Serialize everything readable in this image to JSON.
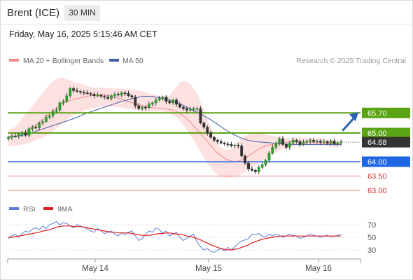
{
  "header": {
    "instrument": "Brent (ICE)",
    "timeframe": "30 MIN"
  },
  "timestamp": "Friday, May 16, 2025 5:15:46 AM CET",
  "legend": [
    {
      "label": "MA 20 + Bollinger Bands",
      "color": "#f08a8a"
    },
    {
      "label": "MA 50",
      "color": "#3c5fa8"
    }
  ],
  "credit": "Research © 2025 Trading Central",
  "rsi_legend": [
    {
      "label": "RSI",
      "color": "#5b7fd6"
    },
    {
      "label": "9MA",
      "color": "#e01e1e"
    }
  ],
  "chart_data": {
    "type": "candlestick",
    "ylim": [
      62.85,
      66.5
    ],
    "x_ticks": [
      "May 14",
      "May 15",
      "May 16"
    ],
    "last_price": 64.68,
    "levels": [
      {
        "value": 65.7,
        "label": "65.70",
        "kind": "resistance"
      },
      {
        "value": 65.0,
        "label": "65.00",
        "kind": "resistance"
      },
      {
        "value": 64.0,
        "label": "64.00",
        "kind": "pivot"
      },
      {
        "value": 63.5,
        "label": "63.50",
        "kind": "support"
      },
      {
        "value": 63.0,
        "label": "63.00",
        "kind": "support"
      }
    ],
    "closes": [
      64.85,
      64.9,
      64.88,
      64.95,
      65.0,
      64.92,
      65.15,
      65.2,
      65.18,
      65.35,
      65.4,
      65.55,
      65.6,
      65.75,
      65.8,
      66.05,
      66.1,
      66.3,
      66.55,
      66.48,
      66.45,
      66.42,
      66.4,
      66.38,
      66.35,
      66.3,
      66.32,
      66.28,
      66.25,
      66.2,
      66.3,
      66.35,
      66.32,
      66.4,
      66.38,
      66.3,
      66.25,
      65.95,
      65.85,
      65.9,
      65.88,
      66.0,
      66.05,
      66.15,
      66.2,
      66.25,
      66.1,
      66.05,
      66.15,
      66.0,
      65.9,
      65.85,
      65.8,
      65.82,
      65.85,
      65.85,
      65.35,
      65.2,
      65.0,
      64.85,
      64.75,
      64.7,
      64.65,
      64.62,
      64.6,
      64.55,
      64.58,
      64.55,
      64.2,
      63.95,
      63.75,
      63.7,
      63.65,
      63.8,
      63.9,
      64.05,
      64.3,
      64.5,
      64.65,
      64.8,
      64.6,
      64.5,
      64.65,
      64.75,
      64.7,
      64.6,
      64.68,
      64.72,
      64.75,
      64.7,
      64.72,
      64.68,
      64.7,
      64.65,
      64.72,
      64.62,
      64.66,
      64.7
    ],
    "ma20": [
      64.85,
      64.86,
      64.88,
      64.92,
      64.98,
      65.05,
      65.12,
      65.2,
      65.28,
      65.38,
      65.48,
      65.58,
      65.68,
      65.78,
      65.88,
      65.98,
      66.05,
      66.1,
      66.14,
      66.17,
      66.2,
      66.22,
      66.25,
      66.28,
      66.3,
      66.32,
      66.33,
      66.33,
      66.32,
      66.3,
      66.28,
      66.25,
      66.22,
      66.18,
      66.14,
      66.1,
      66.06,
      66.02,
      65.98,
      65.95,
      65.92,
      65.9,
      65.88,
      65.87,
      65.86,
      65.85,
      65.84,
      65.82,
      65.8,
      65.75,
      65.68,
      65.6,
      65.5,
      65.38,
      65.25,
      65.12,
      64.98,
      64.84,
      64.7,
      64.56,
      64.42,
      64.3,
      64.2,
      64.12,
      64.06,
      64.02,
      64.0,
      64.02,
      64.06,
      64.12,
      64.2,
      64.28,
      64.36,
      64.44,
      64.5,
      64.55,
      64.58,
      64.6,
      64.62,
      64.64,
      64.66,
      64.68,
      64.7,
      64.7,
      64.7,
      64.69,
      64.68,
      64.68,
      64.68,
      64.67,
      64.66,
      64.65,
      64.65,
      64.64,
      64.64,
      64.63,
      64.62,
      64.62
    ],
    "bb_upper": [
      65.1,
      65.15,
      65.2,
      65.35,
      65.5,
      65.65,
      65.8,
      65.95,
      66.1,
      66.25,
      66.4,
      66.55,
      66.7,
      66.8,
      66.88,
      66.92,
      66.92,
      66.88,
      66.82,
      66.78,
      66.75,
      66.72,
      66.68,
      66.64,
      66.6,
      66.58,
      66.58,
      66.58,
      66.58,
      66.57,
      66.56,
      66.55,
      66.55,
      66.55,
      66.54,
      66.53,
      66.52,
      66.5,
      66.48,
      66.45,
      66.42,
      66.38,
      66.35,
      66.32,
      66.3,
      66.28,
      66.26,
      66.3,
      66.45,
      66.6,
      66.75,
      66.82,
      66.8,
      66.7,
      66.55,
      66.35,
      66.1,
      65.8,
      65.5,
      65.2,
      64.9,
      64.65,
      64.5,
      64.42,
      64.4,
      64.45,
      64.55,
      64.7,
      64.82,
      64.9,
      64.95,
      64.98,
      65.0,
      65.0,
      64.98,
      64.95,
      64.92,
      64.9,
      64.88,
      64.86,
      64.85,
      64.84,
      64.84,
      64.84,
      64.84,
      64.83,
      64.82,
      64.82,
      64.82,
      64.81,
      64.8,
      64.79,
      64.78,
      64.77,
      64.76,
      64.75,
      64.74,
      64.73
    ],
    "bb_lower": [
      64.55,
      64.55,
      64.56,
      64.58,
      64.6,
      64.62,
      64.65,
      64.7,
      64.75,
      64.8,
      64.85,
      64.9,
      64.95,
      65.05,
      65.15,
      65.25,
      65.35,
      65.45,
      65.55,
      65.62,
      65.68,
      65.73,
      65.78,
      65.82,
      65.85,
      65.88,
      65.9,
      65.91,
      65.92,
      65.92,
      65.92,
      65.91,
      65.9,
      65.88,
      65.86,
      65.84,
      65.82,
      65.8,
      65.78,
      65.76,
      65.75,
      65.75,
      65.75,
      65.75,
      65.75,
      65.75,
      65.72,
      65.68,
      65.62,
      65.55,
      65.42,
      65.28,
      65.12,
      64.95,
      64.75,
      64.55,
      64.35,
      64.15,
      63.95,
      63.8,
      63.65,
      63.55,
      63.48,
      63.45,
      63.44,
      63.45,
      63.48,
      63.52,
      63.58,
      63.65,
      63.72,
      63.8,
      63.88,
      63.95,
      64.02,
      64.1,
      64.18,
      64.26,
      64.33,
      64.4,
      64.45,
      64.48,
      64.5,
      64.52,
      64.54,
      64.55,
      64.56,
      64.57,
      64.57,
      64.57,
      64.57,
      64.56,
      64.55,
      64.54,
      64.53,
      64.52,
      64.51,
      64.51
    ],
    "ma50": [
      64.86,
      64.87,
      64.88,
      64.9,
      64.92,
      64.95,
      64.98,
      65.02,
      65.06,
      65.1,
      65.14,
      65.18,
      65.22,
      65.26,
      65.3,
      65.34,
      65.38,
      65.42,
      65.46,
      65.5,
      65.55,
      65.6,
      65.65,
      65.7,
      65.74,
      65.78,
      65.82,
      65.86,
      65.9,
      65.94,
      65.98,
      66.02,
      66.06,
      66.1,
      66.13,
      66.16,
      66.19,
      66.22,
      66.25,
      66.27,
      66.28,
      66.28,
      66.27,
      66.25,
      66.23,
      66.2,
      66.17,
      66.14,
      66.1,
      66.06,
      66.01,
      65.96,
      65.9,
      65.84,
      65.78,
      65.72,
      65.66,
      65.6,
      65.53,
      65.46,
      65.38,
      65.3,
      65.22,
      65.14,
      65.06,
      64.99,
      64.93,
      64.87,
      64.82,
      64.78,
      64.74,
      64.72,
      64.7,
      64.69,
      64.68,
      64.67,
      64.66,
      64.65,
      64.64,
      64.63,
      64.62,
      64.61,
      64.6,
      64.6,
      64.6,
      64.6,
      64.6,
      64.6,
      64.6,
      64.6,
      64.6,
      64.6,
      64.6,
      64.6,
      64.6,
      64.6,
      64.6,
      64.6
    ],
    "rsi": {
      "ylim": [
        15,
        85
      ],
      "ticks": [
        70,
        50,
        30
      ],
      "rsi": [
        48,
        52,
        55,
        50,
        56,
        60,
        58,
        63,
        65,
        62,
        68,
        64,
        70,
        72,
        75,
        70,
        73,
        72,
        68,
        65,
        70,
        68,
        66,
        63,
        60,
        58,
        64,
        60,
        56,
        58,
        60,
        55,
        52,
        57,
        54,
        58,
        60,
        52,
        45,
        48,
        55,
        60,
        58,
        65,
        62,
        57,
        60,
        52,
        55,
        58,
        50,
        45,
        48,
        52,
        55,
        42,
        35,
        30,
        32,
        28,
        26,
        30,
        32,
        28,
        34,
        30,
        35,
        40,
        44,
        46,
        48,
        55,
        54,
        56,
        52,
        50,
        55,
        52,
        55,
        53,
        50,
        52,
        55,
        53,
        52,
        48,
        50,
        52,
        55,
        53,
        52,
        50,
        52,
        53,
        51,
        52,
        53,
        55
      ],
      "ma9": [
        50,
        50,
        51,
        52,
        53,
        54,
        55,
        56,
        57,
        58,
        60,
        61,
        62,
        64,
        66,
        67,
        68,
        68,
        68,
        67,
        67,
        67,
        66,
        65,
        64,
        63,
        62,
        61,
        60,
        59,
        58,
        58,
        57,
        57,
        57,
        57,
        56,
        55,
        54,
        53,
        53,
        53,
        54,
        55,
        56,
        56,
        57,
        57,
        56,
        55,
        55,
        54,
        52,
        51,
        50,
        48,
        46,
        43,
        41,
        38,
        36,
        34,
        32,
        31,
        30,
        30,
        31,
        32,
        34,
        36,
        38,
        41,
        43,
        45,
        47,
        48,
        49,
        50,
        51,
        52,
        52,
        52,
        52,
        52,
        52,
        52,
        52,
        52,
        52,
        52,
        52,
        52,
        52,
        52,
        52,
        52,
        52,
        52
      ]
    }
  }
}
